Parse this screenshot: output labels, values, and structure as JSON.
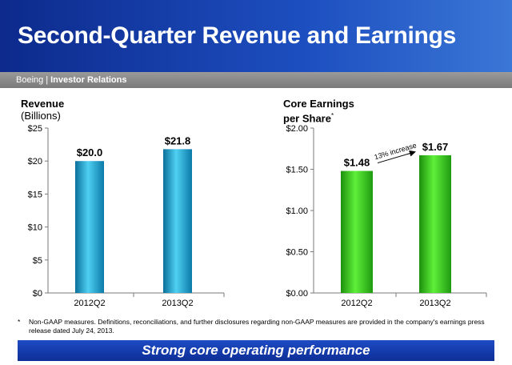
{
  "slide": {
    "title": "Second-Quarter Revenue and Earnings",
    "brand": "Boeing",
    "brand_separator": "|",
    "section": "Investor Relations",
    "footnote_marker": "*",
    "footnote": "Non-GAAP measures. Definitions, reconciliations, and further disclosures regarding non-GAAP measures are provided in the company's earnings press release dated July 24, 2013.",
    "banner": "Strong core operating performance"
  },
  "colors": {
    "header": "#1d4fc0",
    "revenue_bar": "#1aa7d6",
    "eps_bar": "#2fc417",
    "banner": "#1440b0"
  },
  "chart_data": [
    {
      "type": "bar",
      "title": "Revenue",
      "subtitle": "(Billions)",
      "categories": [
        "2012Q2",
        "2013Q2"
      ],
      "values": [
        20.0,
        21.8
      ],
      "data_labels": [
        "$20.0",
        "$21.8"
      ],
      "ylim": [
        0,
        25
      ],
      "yticks": [
        0,
        5,
        10,
        15,
        20,
        25
      ],
      "ytick_labels": [
        "$0",
        "$5",
        "$10",
        "$15",
        "$20",
        "$25"
      ],
      "grid": false
    },
    {
      "type": "bar",
      "title": "Core Earnings",
      "title_line2": "per Share",
      "title_marker": "*",
      "categories": [
        "2012Q2",
        "2013Q2"
      ],
      "values": [
        1.48,
        1.67
      ],
      "data_labels": [
        "$1.48",
        "$1.67"
      ],
      "ylim": [
        0,
        2.0
      ],
      "yticks": [
        0,
        0.5,
        1.0,
        1.5,
        2.0
      ],
      "ytick_labels": [
        "$0.00",
        "$0.50",
        "$1.00",
        "$1.50",
        "$2.00"
      ],
      "annotation": "13% increase",
      "grid": false
    }
  ]
}
